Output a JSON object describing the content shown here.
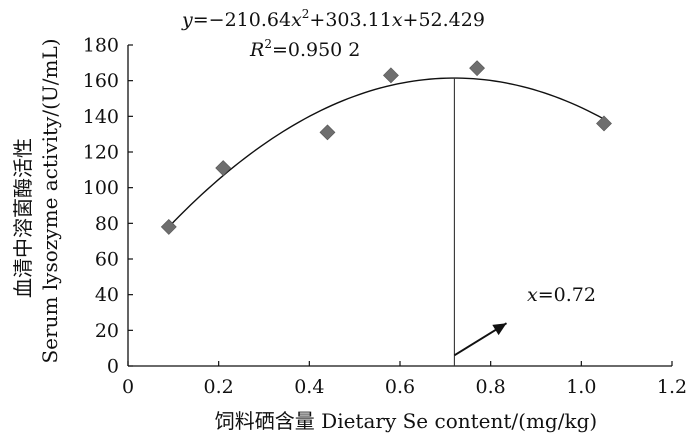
{
  "chart_data": {
    "type": "scatter",
    "xlabel": "饲料硒含量  Dietary Se content/(mg/kg)",
    "ylabel_cn": "血清中溶菌酶活性",
    "ylabel_en": "Serum lysozyme activity/(U/mL)",
    "xlim": [
      0,
      1.2
    ],
    "ylim": [
      0,
      180
    ],
    "xticks": [
      "0",
      "0.2",
      "0.4",
      "0.6",
      "0.8",
      "1.0",
      "1.2"
    ],
    "yticks": [
      "0",
      "20",
      "40",
      "60",
      "80",
      "100",
      "120",
      "140",
      "160",
      "180"
    ],
    "points": {
      "x": [
        0.09,
        0.21,
        0.44,
        0.58,
        0.77,
        1.05
      ],
      "y": [
        78,
        111,
        131,
        163,
        167,
        136
      ]
    },
    "fit": {
      "a": -210.64,
      "b": 303.11,
      "c": 52.429,
      "x_range": [
        0.09,
        1.05
      ]
    },
    "equation": {
      "y_var": "y",
      "equals_prefix": "=−210.64",
      "x_var": "x",
      "x2_suffix": "2",
      "mid": "+303.11",
      "x_var2": "x",
      "tail": "+52.429"
    },
    "r2": {
      "var": "R",
      "sup": "2",
      "value": "=0.950 2"
    },
    "optimum": {
      "x": 0.72,
      "label_var": "x",
      "label_value": "=0.72"
    },
    "colors": {
      "marker": "#6e6e6e",
      "line": "#111111"
    }
  }
}
